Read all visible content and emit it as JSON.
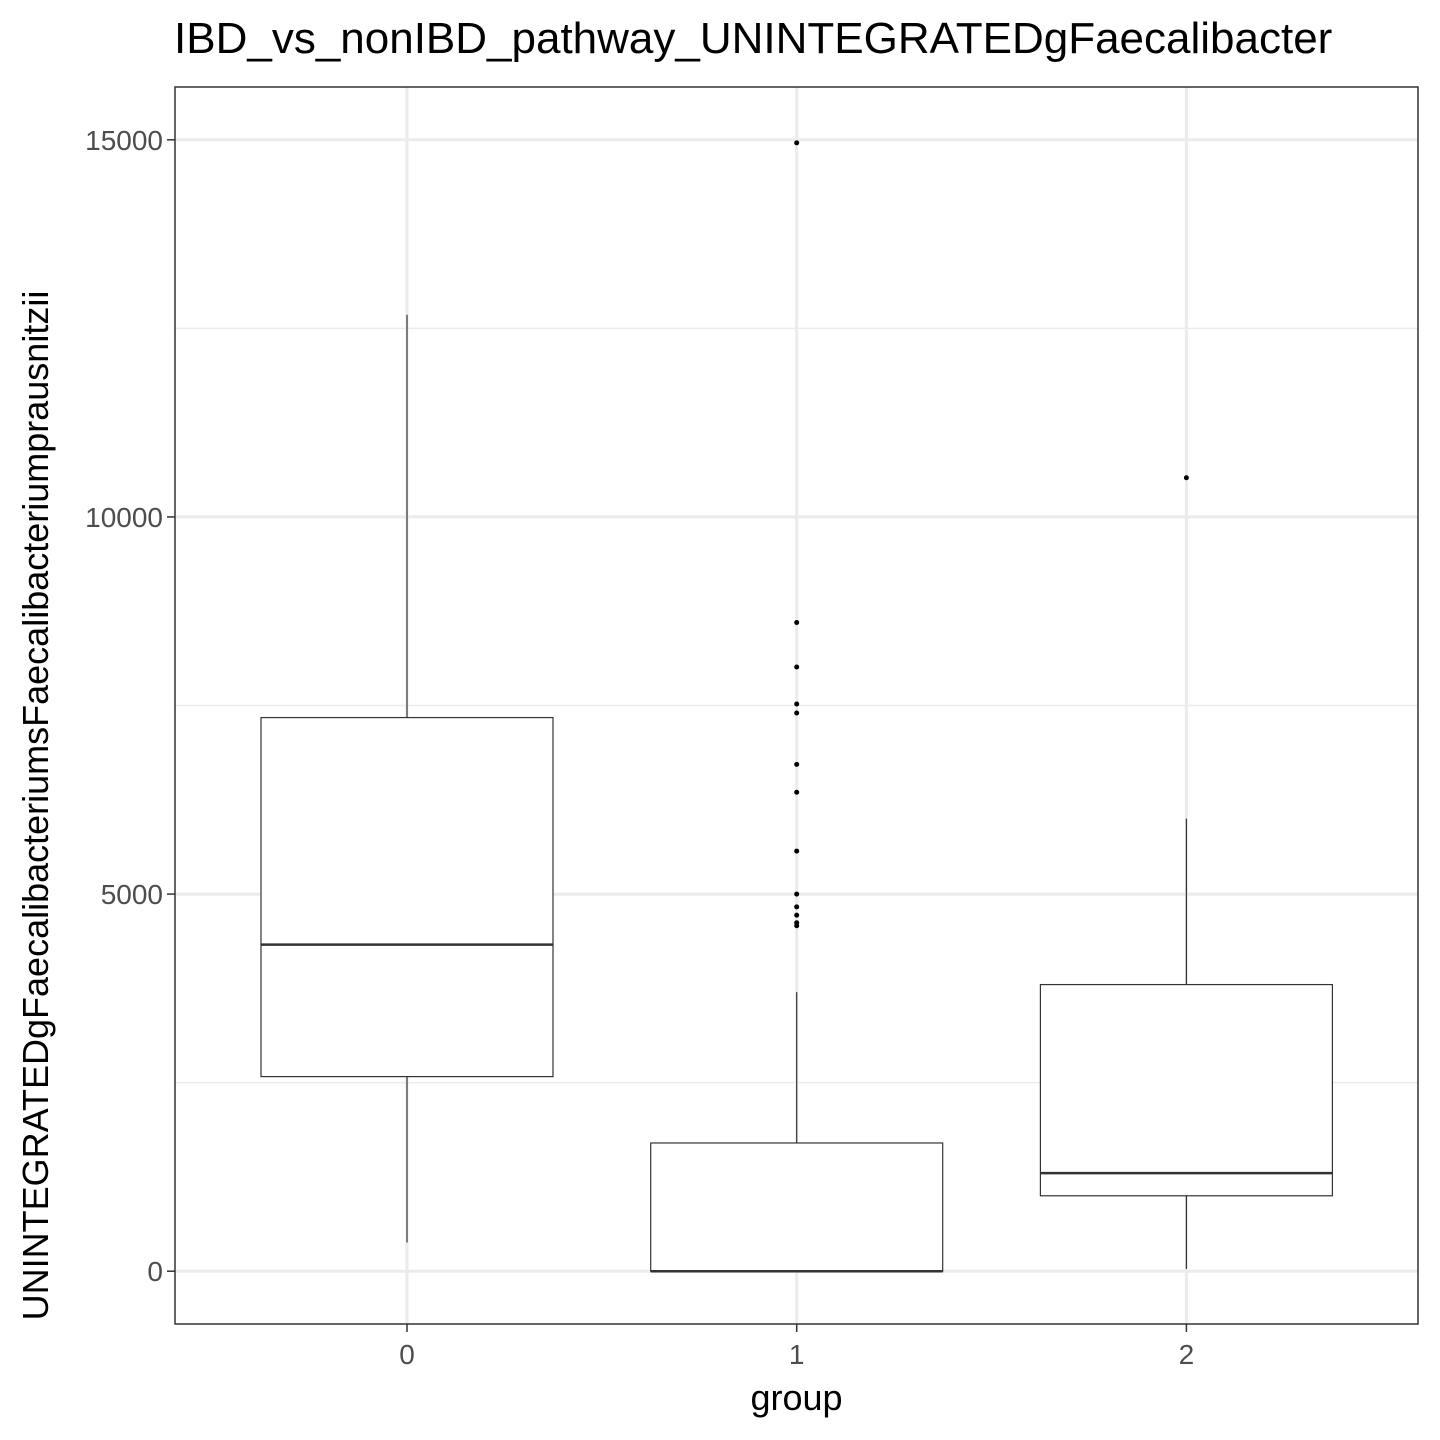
{
  "chart_data": {
    "type": "boxplot",
    "title": "IBD_vs_nonIBD_pathway_UNINTEGRATEDgFaecalibacter",
    "xlabel": "group",
    "ylabel": "UNINTEGRATEDgFaecalibacteriumsFaecalibacteriumprausnitzii",
    "categories": [
      "0",
      "1",
      "2"
    ],
    "ylim": [
      -700,
      15700
    ],
    "yticks": [
      0,
      5000,
      10000,
      15000
    ],
    "yticklabels": [
      "0",
      "5000",
      "10000",
      "15000"
    ],
    "grid": true,
    "boxes": [
      {
        "group": "0",
        "whisker_low": 380,
        "q1": 2580,
        "median": 4330,
        "q3": 7340,
        "whisker_high": 12680,
        "outliers": []
      },
      {
        "group": "1",
        "whisker_low": 0,
        "q1": 0,
        "median": 0,
        "q3": 1700,
        "whisker_high": 3700,
        "outliers": [
          14960,
          8600,
          8010,
          7520,
          7400,
          6720,
          6350,
          5570,
          5000,
          4830,
          4720,
          4620,
          4580
        ]
      },
      {
        "group": "2",
        "whisker_low": 30,
        "q1": 1000,
        "median": 1300,
        "q3": 3800,
        "whisker_high": 6000,
        "outliers": [
          10520
        ]
      }
    ]
  }
}
